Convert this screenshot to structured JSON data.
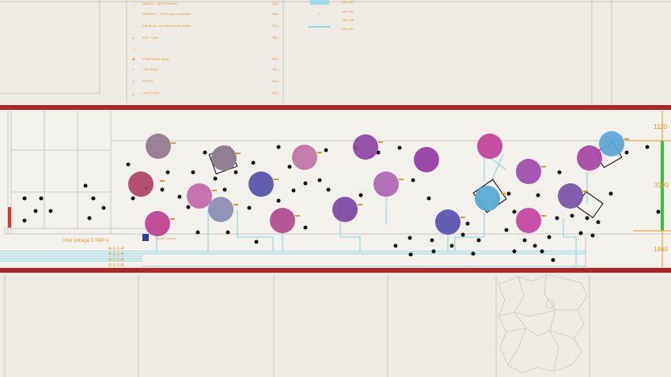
{
  "colors": {
    "background": "#eeebe5",
    "gridline": "#c9c6c0",
    "highlight_border": "#b32222",
    "annotation": "#e39a2a",
    "wire": "#8fd7e6",
    "green_bar": "#3fbf3f",
    "dot": "#111111"
  },
  "legend": {
    "entries": [
      {
        "text": "RMEDR - INSTRUMENT",
        "icon": "bulb-icon"
      },
      {
        "text": "PRIMARY - TEMP auto connected",
        "icon": "pin-icon"
      },
      {
        "text": "AIR Block - Conditions Area Notes",
        "icon": "lamp-icon"
      },
      {
        "text": "KEY - LINK",
        "icon": "cross-icon"
      },
      {
        "text": "",
        "icon": "fire-icon"
      },
      {
        "text": "ZONE Notes Block",
        "icon": "box-icon"
      },
      {
        "text": "LINK Block",
        "icon": "square-icon"
      },
      {
        "text": "FOUTS",
        "icon": "warning-icon"
      },
      {
        "text": "LINK POINT",
        "icon": "triangle-icon"
      }
    ],
    "codes": [
      "SB-1",
      "SB-1",
      "SB-1",
      "SB-1",
      "",
      "SB-1",
      "SB-1",
      "SB-1",
      "SB-1"
    ],
    "right_codes": [
      "ARK NE",
      "ARK AR",
      "ARK ME",
      "ARK SE"
    ]
  },
  "strip": {
    "label": "Inlet Voltage 3 TMP 4",
    "sub_label": "Circuit Connect",
    "bus_codes": [
      "4-1-1-4",
      "4-1-1-4",
      "4-1-1-4",
      "4-1-1-4"
    ],
    "dims": {
      "top": "1120",
      "middle": "3190",
      "bottom": "1440"
    }
  },
  "devices": [
    {
      "color": "#947b8f"
    },
    {
      "color": "#b0466a"
    },
    {
      "color": "#bf4596"
    },
    {
      "color": "#c46aa9"
    },
    {
      "color": "#8b7a8d"
    },
    {
      "color": "#c177a5"
    },
    {
      "color": "#8c8fb5"
    },
    {
      "color": "#5a55ad"
    },
    {
      "color": "#b14e8f"
    },
    {
      "color": "#7d4aa6"
    },
    {
      "color": "#904aa8"
    },
    {
      "color": "#ad68b4"
    },
    {
      "color": "#943da6"
    },
    {
      "color": "#5c54b3"
    },
    {
      "color": "#c3449d"
    },
    {
      "color": "#59aad7"
    },
    {
      "color": "#a04eb0"
    },
    {
      "color": "#c646a2"
    },
    {
      "color": "#7c54ab"
    },
    {
      "color": "#a949a9"
    },
    {
      "color": "#5ea8d8"
    },
    {
      "color": "#7e54ad"
    }
  ]
}
